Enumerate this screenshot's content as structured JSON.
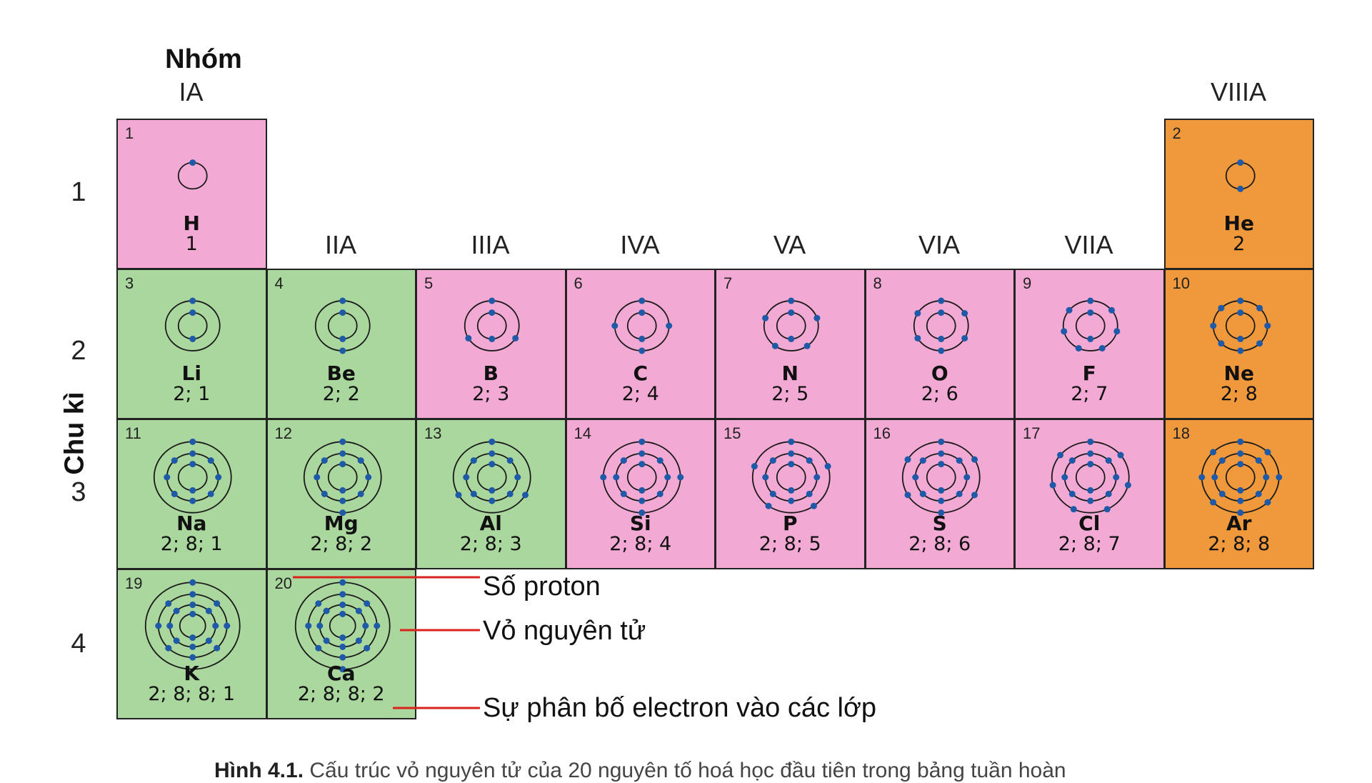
{
  "header": {
    "nhom_label": "Nhóm",
    "chu_ki_label": "Chu kì"
  },
  "groups": [
    "IA",
    "IIA",
    "IIIA",
    "IVA",
    "VA",
    "VIA",
    "VIIA",
    "VIIIA"
  ],
  "periods": [
    "1",
    "2",
    "3",
    "4"
  ],
  "colors": {
    "metal": "#a9d79d",
    "nonmetal": "#f2a9d4",
    "noble": "#f0993c",
    "electron": "#1f5aa8",
    "leader": "#d9231c"
  },
  "elements": [
    {
      "z": "1",
      "symbol": "H",
      "config": "1",
      "group": 1,
      "period": 1,
      "type": "nonmetal",
      "shells": [
        1
      ]
    },
    {
      "z": "2",
      "symbol": "He",
      "config": "2",
      "group": 8,
      "period": 1,
      "type": "noble",
      "shells": [
        2
      ]
    },
    {
      "z": "3",
      "symbol": "Li",
      "config": "2; 1",
      "group": 1,
      "period": 2,
      "type": "metal",
      "shells": [
        2,
        1
      ]
    },
    {
      "z": "4",
      "symbol": "Be",
      "config": "2; 2",
      "group": 2,
      "period": 2,
      "type": "metal",
      "shells": [
        2,
        2
      ]
    },
    {
      "z": "5",
      "symbol": "B",
      "config": "2; 3",
      "group": 3,
      "period": 2,
      "type": "nonmetal",
      "shells": [
        2,
        3
      ]
    },
    {
      "z": "6",
      "symbol": "C",
      "config": "2; 4",
      "group": 4,
      "period": 2,
      "type": "nonmetal",
      "shells": [
        2,
        4
      ]
    },
    {
      "z": "7",
      "symbol": "N",
      "config": "2; 5",
      "group": 5,
      "period": 2,
      "type": "nonmetal",
      "shells": [
        2,
        5
      ]
    },
    {
      "z": "8",
      "symbol": "O",
      "config": "2; 6",
      "group": 6,
      "period": 2,
      "type": "nonmetal",
      "shells": [
        2,
        6
      ]
    },
    {
      "z": "9",
      "symbol": "F",
      "config": "2; 7",
      "group": 7,
      "period": 2,
      "type": "nonmetal",
      "shells": [
        2,
        7
      ]
    },
    {
      "z": "10",
      "symbol": "Ne",
      "config": "2; 8",
      "group": 8,
      "period": 2,
      "type": "noble",
      "shells": [
        2,
        8
      ]
    },
    {
      "z": "11",
      "symbol": "Na",
      "config": "2; 8; 1",
      "group": 1,
      "period": 3,
      "type": "metal",
      "shells": [
        2,
        8,
        1
      ]
    },
    {
      "z": "12",
      "symbol": "Mg",
      "config": "2; 8; 2",
      "group": 2,
      "period": 3,
      "type": "metal",
      "shells": [
        2,
        8,
        2
      ]
    },
    {
      "z": "13",
      "symbol": "Al",
      "config": "2; 8; 3",
      "group": 3,
      "period": 3,
      "type": "metal",
      "shells": [
        2,
        8,
        3
      ]
    },
    {
      "z": "14",
      "symbol": "Si",
      "config": "2; 8; 4",
      "group": 4,
      "period": 3,
      "type": "nonmetal",
      "shells": [
        2,
        8,
        4
      ]
    },
    {
      "z": "15",
      "symbol": "P",
      "config": "2; 8; 5",
      "group": 5,
      "period": 3,
      "type": "nonmetal",
      "shells": [
        2,
        8,
        5
      ]
    },
    {
      "z": "16",
      "symbol": "S",
      "config": "2; 8; 6",
      "group": 6,
      "period": 3,
      "type": "nonmetal",
      "shells": [
        2,
        8,
        6
      ]
    },
    {
      "z": "17",
      "symbol": "Cl",
      "config": "2; 8; 7",
      "group": 7,
      "period": 3,
      "type": "nonmetal",
      "shells": [
        2,
        8,
        7
      ]
    },
    {
      "z": "18",
      "symbol": "Ar",
      "config": "2; 8; 8",
      "group": 8,
      "period": 3,
      "type": "noble",
      "shells": [
        2,
        8,
        8
      ]
    },
    {
      "z": "19",
      "symbol": "K",
      "config": "2; 8; 8; 1",
      "group": 1,
      "period": 4,
      "type": "metal",
      "shells": [
        2,
        8,
        8,
        1
      ]
    },
    {
      "z": "20",
      "symbol": "Ca",
      "config": "2; 8; 8; 2",
      "group": 2,
      "period": 4,
      "type": "metal",
      "shells": [
        2,
        8,
        8,
        2
      ]
    }
  ],
  "legend": {
    "proton": "Số proton",
    "shell": "Vỏ nguyên tử",
    "distribution": "Sự phân bố electron vào các lớp"
  },
  "caption": {
    "label": "Hình 4.1.",
    "text": "Cấu trúc vỏ nguyên tử của 20 nguyên tố hoá học đầu tiên trong bảng tuần hoàn"
  }
}
